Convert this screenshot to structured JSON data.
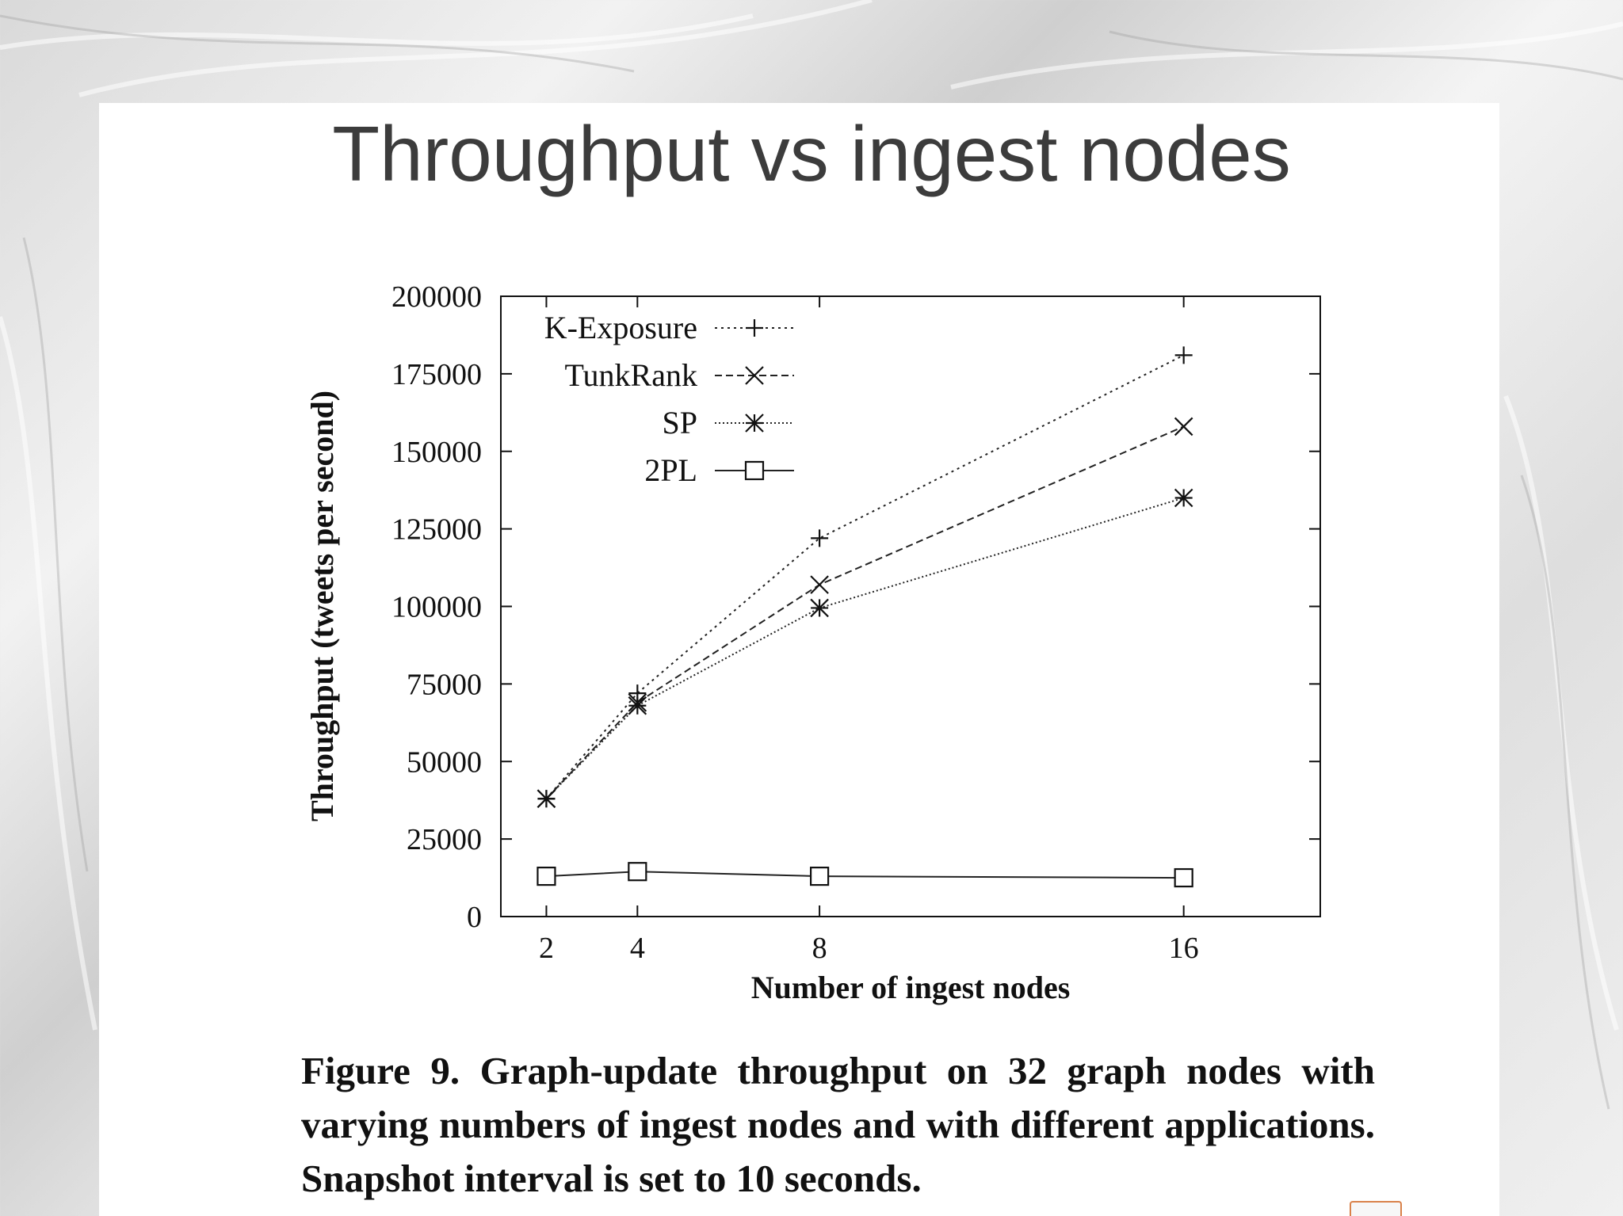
{
  "slide": {
    "title": "Throughput vs ingest nodes",
    "caption": "Figure 9.  Graph-update throughput on 32 graph nodes with varying numbers of ingest nodes and with different applications. Snapshot interval is set to 10 seconds."
  },
  "chart_data": {
    "type": "line",
    "title": "",
    "xlabel": "Number of ingest nodes",
    "ylabel": "Throughput (tweets per second)",
    "x": [
      2,
      4,
      8,
      16
    ],
    "xlim": [
      0,
      20
    ],
    "ylim": [
      0,
      200000
    ],
    "xticks": [
      "2",
      "4",
      "8",
      "16"
    ],
    "yticks": [
      "0",
      "25000",
      "50000",
      "75000",
      "100000",
      "125000",
      "150000",
      "175000",
      "200000"
    ],
    "grid": false,
    "legend": "top-left",
    "series": [
      {
        "name": "K-Exposure",
        "marker": "plus",
        "dash": "dotted",
        "values": [
          38000,
          72000,
          122000,
          181000
        ]
      },
      {
        "name": "TunkRank",
        "marker": "cross",
        "dash": "dashed",
        "values": [
          38000,
          69000,
          107000,
          158000
        ]
      },
      {
        "name": "SP",
        "marker": "star",
        "dash": "fine-dotted",
        "values": [
          38000,
          68000,
          99500,
          135000
        ]
      },
      {
        "name": "2PL",
        "marker": "square",
        "dash": "solid",
        "values": [
          13000,
          14500,
          13000,
          12500
        ]
      }
    ]
  }
}
